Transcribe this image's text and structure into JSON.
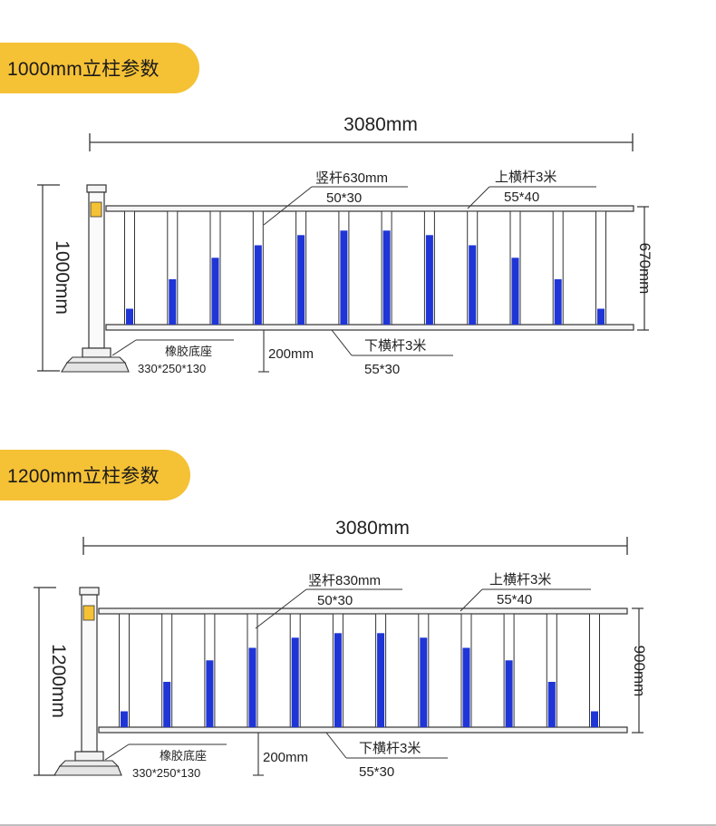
{
  "sections": [
    {
      "title": "1000mm立柱参数",
      "total_width": "3080mm",
      "post_height": "1000mm",
      "panel_height": "670mm",
      "vertical_bar_label": "竖杆630mm",
      "vertical_bar_size": "50*30",
      "top_rail_label": "上横杆3米",
      "top_rail_size": "55*40",
      "bottom_rail_label": "下横杆3米",
      "bottom_rail_size": "55*30",
      "base_label": "橡胶底座",
      "base_size": "330*250*130",
      "ground_clearance": "200mm",
      "bar_count": 12,
      "bar_fill": [
        0.14,
        0.4,
        0.59,
        0.7,
        0.79,
        0.83,
        0.83,
        0.79,
        0.7,
        0.59,
        0.4,
        0.14
      ]
    },
    {
      "title": "1200mm立柱参数",
      "total_width": "3080mm",
      "post_height": "1200mm",
      "panel_height": "900mm",
      "vertical_bar_label": "竖杆830mm",
      "vertical_bar_size": "50*30",
      "top_rail_label": "上横杆3米",
      "top_rail_size": "55*40",
      "bottom_rail_label": "下横杆3米",
      "bottom_rail_size": "55*30",
      "base_label": "橡胶底座",
      "base_size": "330*250*130",
      "ground_clearance": "200mm",
      "bar_count": 12,
      "bar_fill": [
        0.14,
        0.4,
        0.59,
        0.7,
        0.79,
        0.83,
        0.83,
        0.79,
        0.7,
        0.59,
        0.4,
        0.14
      ]
    }
  ],
  "colors": {
    "badge": "#f5c135",
    "bar_fill": "#1f35d6",
    "line": "#333333",
    "reflector": "#f5c135"
  }
}
